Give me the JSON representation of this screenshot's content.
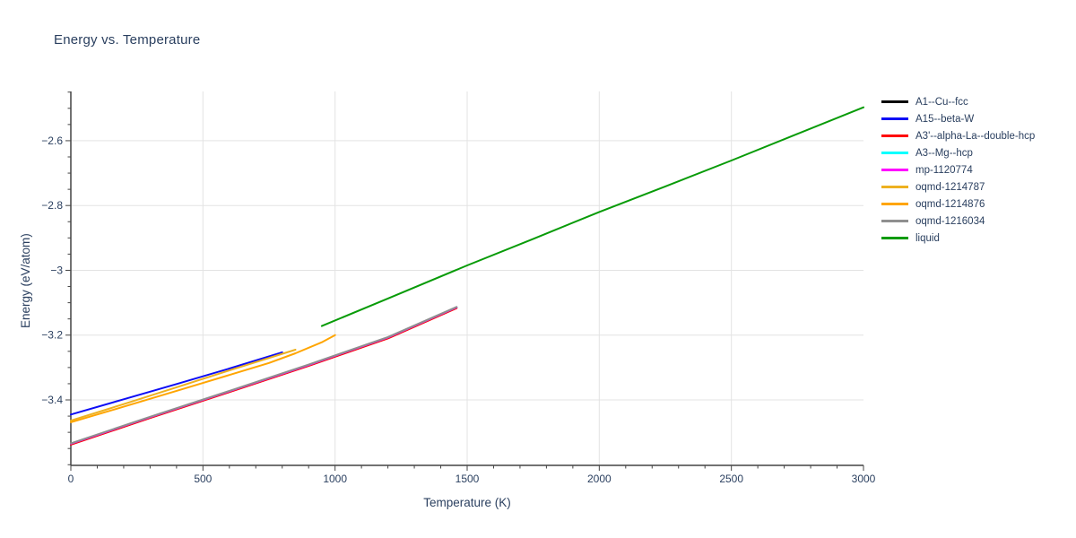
{
  "chart_data": {
    "type": "line",
    "title": "Energy vs. Temperature",
    "xlabel": "Temperature (K)",
    "ylabel": "Energy (eV/atom)",
    "xlim": [
      0,
      3000
    ],
    "ylim": [
      -3.602,
      -2.448
    ],
    "x_tick_values": [
      0,
      500,
      1000,
      1500,
      2000,
      2500,
      3000
    ],
    "x_tick_labels": [
      "0",
      "500",
      "1000",
      "1500",
      "2000",
      "2500",
      "3000"
    ],
    "x_minor_step": 100,
    "y_tick_values": [
      -3.4,
      -3.2,
      -3,
      -2.8,
      -2.6
    ],
    "y_tick_labels": [
      "−3.4",
      "−3.2",
      "−3",
      "−2.8",
      "−2.6"
    ],
    "y_minor_step": 0.05,
    "grid": true,
    "legend_position": "top-right",
    "colors": {
      "text": "#2a3f5f",
      "grid": "#e3e3e3",
      "axis": "#444444",
      "background": "#ffffff"
    },
    "series": [
      {
        "name": "A1--Cu--fcc",
        "color": "#000000",
        "points": [
          [
            0,
            -3.536
          ],
          [
            300,
            -3.454
          ],
          [
            600,
            -3.374
          ],
          [
            900,
            -3.293
          ],
          [
            1200,
            -3.208
          ],
          [
            1460,
            -3.115
          ]
        ]
      },
      {
        "name": "A15--beta-W",
        "color": "#0d0df5",
        "points": [
          [
            0,
            -3.445
          ],
          [
            200,
            -3.398
          ],
          [
            400,
            -3.351
          ],
          [
            600,
            -3.303
          ],
          [
            800,
            -3.253
          ]
        ]
      },
      {
        "name": "A3'--alpha-La--double-hcp",
        "color": "#ff0000",
        "points": [
          [
            0,
            -3.538
          ],
          [
            300,
            -3.456
          ],
          [
            600,
            -3.376
          ],
          [
            900,
            -3.295
          ],
          [
            1200,
            -3.21
          ],
          [
            1460,
            -3.117
          ]
        ]
      },
      {
        "name": "A3--Mg--hcp",
        "color": "#00ffff",
        "points": [
          [
            0,
            -3.535
          ],
          [
            300,
            -3.453
          ],
          [
            600,
            -3.373
          ],
          [
            900,
            -3.292
          ],
          [
            1200,
            -3.207
          ],
          [
            1460,
            -3.114
          ]
        ]
      },
      {
        "name": "mp-1120774",
        "color": "#ff00ff",
        "points": [
          [
            0,
            -3.535
          ],
          [
            300,
            -3.453
          ],
          [
            600,
            -3.373
          ],
          [
            900,
            -3.292
          ],
          [
            1200,
            -3.207
          ],
          [
            1460,
            -3.114
          ]
        ]
      },
      {
        "name": "oqmd-1214787",
        "color": "#edb120",
        "points": [
          [
            0,
            -3.464
          ],
          [
            200,
            -3.413
          ],
          [
            400,
            -3.361
          ],
          [
            600,
            -3.309
          ],
          [
            850,
            -3.245
          ]
        ]
      },
      {
        "name": "oqmd-1214876",
        "color": "#ffa500",
        "points": [
          [
            0,
            -3.469
          ],
          [
            200,
            -3.421
          ],
          [
            400,
            -3.372
          ],
          [
            600,
            -3.323
          ],
          [
            750,
            -3.286
          ],
          [
            850,
            -3.256
          ],
          [
            950,
            -3.222
          ],
          [
            1000,
            -3.2
          ]
        ]
      },
      {
        "name": "oqmd-1216034",
        "color": "#8f8f8f",
        "points": [
          [
            0,
            -3.534
          ],
          [
            300,
            -3.452
          ],
          [
            600,
            -3.372
          ],
          [
            900,
            -3.291
          ],
          [
            1200,
            -3.206
          ],
          [
            1460,
            -3.113
          ]
        ]
      },
      {
        "name": "liquid",
        "color": "#089b08",
        "points": [
          [
            950,
            -3.172
          ],
          [
            1200,
            -3.087
          ],
          [
            1500,
            -2.985
          ],
          [
            1750,
            -2.903
          ],
          [
            2000,
            -2.82
          ],
          [
            2250,
            -2.741
          ],
          [
            2500,
            -2.661
          ],
          [
            2750,
            -2.579
          ],
          [
            3000,
            -2.497
          ]
        ]
      }
    ]
  }
}
